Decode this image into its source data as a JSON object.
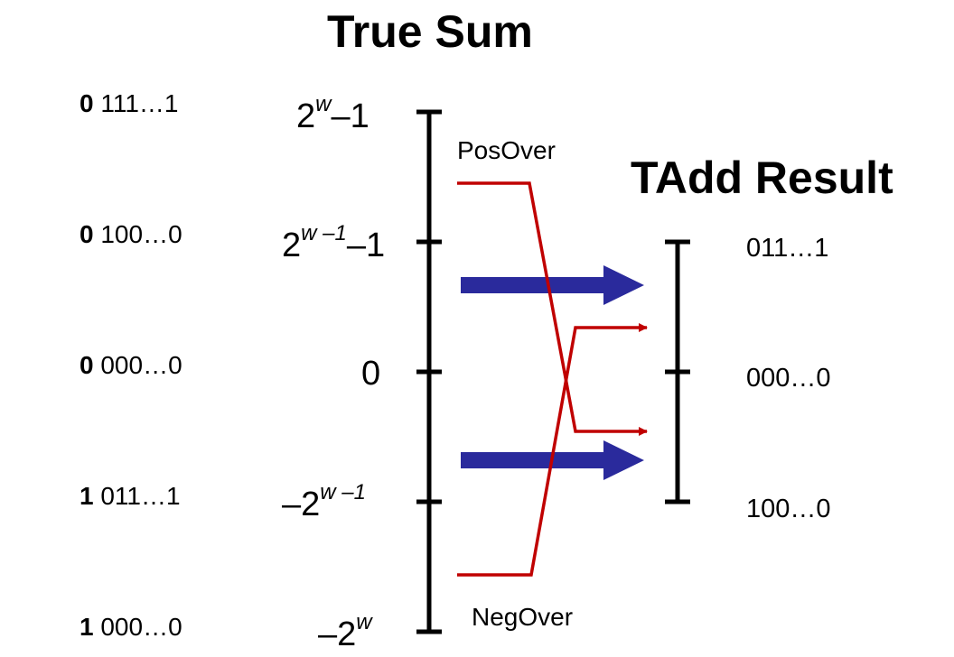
{
  "titles": {
    "true_sum": "True Sum",
    "tadd_result": "TAdd Result"
  },
  "bit_labels": [
    {
      "sign": "0",
      "rest": "111…1"
    },
    {
      "sign": "0",
      "rest": "100…0"
    },
    {
      "sign": "0",
      "rest": "000…0"
    },
    {
      "sign": "1",
      "rest": "011…1"
    },
    {
      "sign": "1",
      "rest": "000…0"
    }
  ],
  "true_sum_ticks": [
    {
      "pre": "2",
      "sup": "w",
      "post": "–1"
    },
    {
      "pre": "2",
      "sup": "w –1",
      "post": "–1"
    },
    {
      "pre": "0",
      "sup": "",
      "post": ""
    },
    {
      "pre": "–2",
      "sup": "w –1",
      "post": ""
    },
    {
      "pre": "–2",
      "sup": "w",
      "post": ""
    }
  ],
  "tadd_ticks": [
    "011…1",
    "000…0",
    "100…0"
  ],
  "overflow_labels": {
    "pos": "PosOver",
    "neg": "NegOver"
  },
  "colors": {
    "axis": "#000000",
    "overflow": "#c00000",
    "mapping_arrow": "#2a2a9c"
  }
}
